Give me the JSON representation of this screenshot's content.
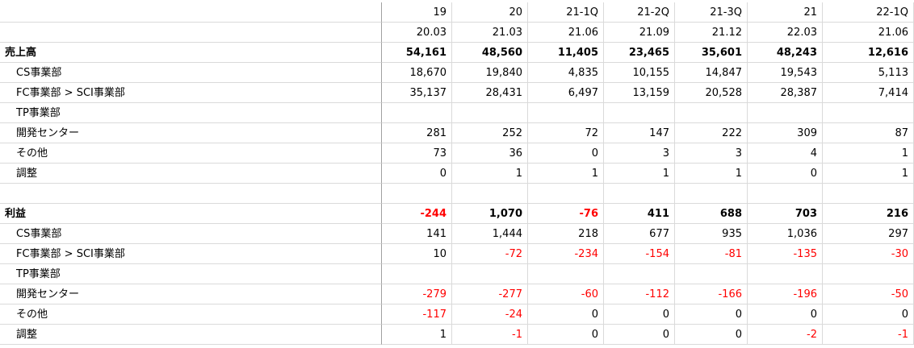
{
  "header_periods": [
    "19",
    "20",
    "21-1Q",
    "21-2Q",
    "21-3Q",
    "21",
    "22-1Q"
  ],
  "header_dates": [
    "20.03",
    "21.03",
    "21.06",
    "21.09",
    "21.12",
    "22.03",
    "21.06"
  ],
  "rows": [
    {
      "label": "売上高",
      "bold": true,
      "values": [
        "54,161",
        "48,560",
        "11,405",
        "23,465",
        "35,601",
        "48,243",
        "12,616"
      ],
      "neg": [
        false,
        false,
        false,
        false,
        false,
        false,
        false
      ]
    },
    {
      "label": "CS事業部",
      "bold": false,
      "values": [
        "18,670",
        "19,840",
        "4,835",
        "10,155",
        "14,847",
        "19,543",
        "5,113"
      ],
      "neg": [
        false,
        false,
        false,
        false,
        false,
        false,
        false
      ]
    },
    {
      "label": "FC事業部 > SCI事業部",
      "bold": false,
      "values": [
        "35,137",
        "28,431",
        "6,497",
        "13,159",
        "20,528",
        "28,387",
        "7,414"
      ],
      "neg": [
        false,
        false,
        false,
        false,
        false,
        false,
        false
      ]
    },
    {
      "label": "TP事業部",
      "bold": false,
      "values": [
        "",
        "",
        "",
        "",
        "",
        "",
        ""
      ],
      "neg": [
        false,
        false,
        false,
        false,
        false,
        false,
        false
      ]
    },
    {
      "label": "開発センター",
      "bold": false,
      "values": [
        "281",
        "252",
        "72",
        "147",
        "222",
        "309",
        "87"
      ],
      "neg": [
        false,
        false,
        false,
        false,
        false,
        false,
        false
      ]
    },
    {
      "label": "その他",
      "bold": false,
      "values": [
        "73",
        "36",
        "0",
        "3",
        "3",
        "4",
        "1"
      ],
      "neg": [
        false,
        false,
        false,
        false,
        false,
        false,
        false
      ]
    },
    {
      "label": "調整",
      "bold": false,
      "values": [
        "0",
        "1",
        "1",
        "1",
        "1",
        "0",
        "1"
      ],
      "neg": [
        false,
        false,
        false,
        false,
        false,
        false,
        false
      ]
    },
    {
      "label": "",
      "bold": false,
      "values": [
        "",
        "",
        "",
        "",
        "",
        "",
        ""
      ],
      "neg": [
        false,
        false,
        false,
        false,
        false,
        false,
        false
      ]
    },
    {
      "label": "利益",
      "bold": true,
      "values": [
        "-244",
        "1,070",
        "-76",
        "411",
        "688",
        "703",
        "216"
      ],
      "neg": [
        true,
        false,
        true,
        false,
        false,
        false,
        false
      ]
    },
    {
      "label": "CS事業部",
      "bold": false,
      "values": [
        "141",
        "1,444",
        "218",
        "677",
        "935",
        "1,036",
        "297"
      ],
      "neg": [
        false,
        false,
        false,
        false,
        false,
        false,
        false
      ]
    },
    {
      "label": "FC事業部 > SCI事業部",
      "bold": false,
      "values": [
        "10",
        "-72",
        "-234",
        "-154",
        "-81",
        "-135",
        "-30"
      ],
      "neg": [
        false,
        true,
        true,
        true,
        true,
        true,
        true
      ]
    },
    {
      "label": "TP事業部",
      "bold": false,
      "values": [
        "",
        "",
        "",
        "",
        "",
        "",
        ""
      ],
      "neg": [
        false,
        false,
        false,
        false,
        false,
        false,
        false
      ]
    },
    {
      "label": "開発センター",
      "bold": false,
      "values": [
        "-279",
        "-277",
        "-60",
        "-112",
        "-166",
        "-196",
        "-50"
      ],
      "neg": [
        true,
        true,
        true,
        true,
        true,
        true,
        true
      ]
    },
    {
      "label": "その他",
      "bold": false,
      "values": [
        "-117",
        "-24",
        "0",
        "0",
        "0",
        "0",
        "0"
      ],
      "neg": [
        true,
        true,
        false,
        false,
        false,
        false,
        false
      ]
    },
    {
      "label": "調整",
      "bold": false,
      "values": [
        "1",
        "-1",
        "0",
        "0",
        "0",
        "-2",
        "-1"
      ],
      "neg": [
        false,
        true,
        false,
        false,
        false,
        true,
        true
      ]
    }
  ]
}
